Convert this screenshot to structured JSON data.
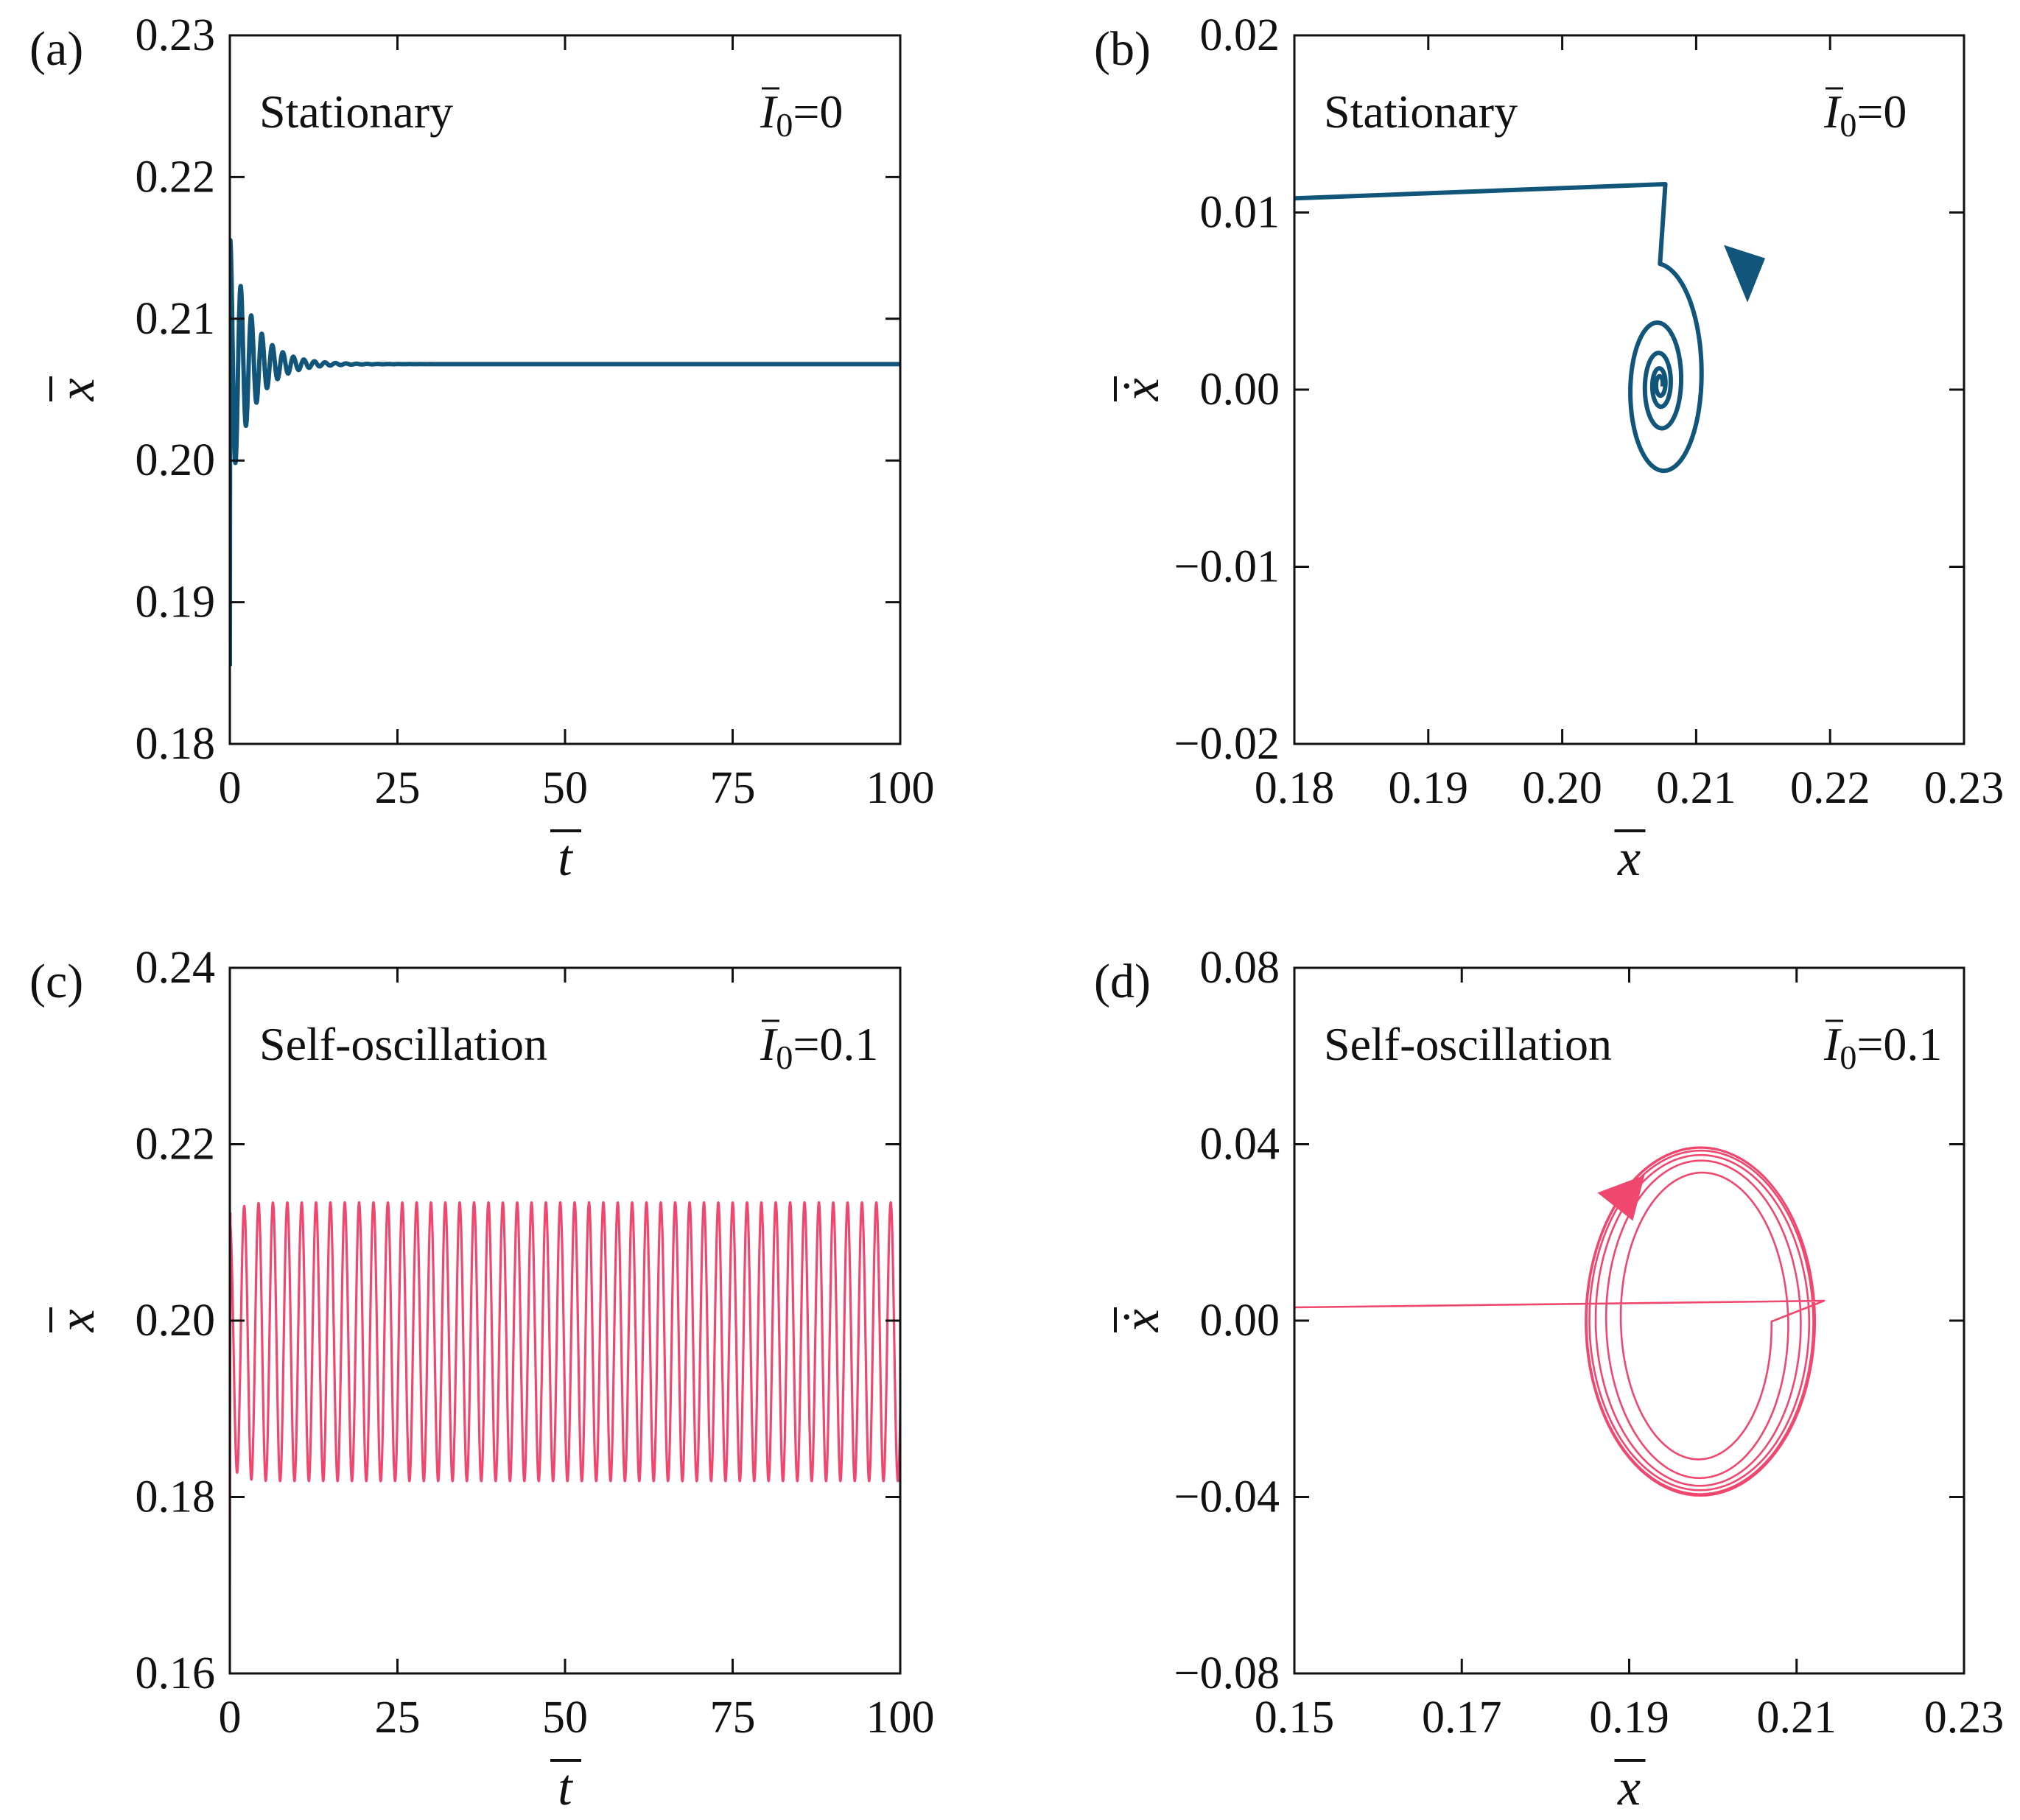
{
  "chart_data": [
    {
      "type": "line",
      "panel": "(a)",
      "regime": "Stationary",
      "param": {
        "symbol": "I",
        "subscript": "0",
        "value": "=0"
      },
      "xlabel": "t",
      "ylabel": "x",
      "xlim": [
        0,
        100
      ],
      "ylim": [
        0.18,
        0.23
      ],
      "xticks": [
        "0",
        "25",
        "50",
        "75",
        "100"
      ],
      "yticks": [
        "0.18",
        "0.19",
        "0.20",
        "0.21",
        "0.22",
        "0.23"
      ],
      "xtick_values": [
        0,
        25,
        50,
        75,
        100
      ],
      "ytick_values": [
        0.18,
        0.19,
        0.2,
        0.21,
        0.22,
        0.23
      ],
      "color": "#12557a",
      "model": {
        "kind": "damped",
        "x0": 0.1855,
        "eq": 0.2068,
        "amp": 0.0088,
        "decay": 0.3,
        "omega": 4.0,
        "rise": 0.06,
        "t_end": 100
      }
    },
    {
      "type": "line",
      "panel": "(b)",
      "regime": "Stationary",
      "param": {
        "symbol": "I",
        "subscript": "0",
        "value": "=0"
      },
      "xlabel": "x",
      "ylabel": "ẋ",
      "xlim": [
        0.18,
        0.23
      ],
      "ylim": [
        -0.02,
        0.02
      ],
      "xticks": [
        "0.18",
        "0.19",
        "0.20",
        "0.21",
        "0.22",
        "0.23"
      ],
      "yticks": [
        "−0.02",
        "−0.01",
        "0.00",
        "0.01",
        "0.02"
      ],
      "xtick_values": [
        0.18,
        0.19,
        0.2,
        0.21,
        0.22,
        0.23
      ],
      "ytick_values": [
        -0.02,
        -0.01,
        0.0,
        0.01,
        0.02
      ],
      "color": "#12557a",
      "model": {
        "kind": "spiral",
        "entry": [
          [
            0.18,
            0.0108
          ],
          [
            0.2077,
            0.0116
          ]
        ],
        "center": [
          0.2073,
          0.0003
        ],
        "r0": 0.0068,
        "aspect": 1.72,
        "turns": 4.3,
        "decay": 0.5
      },
      "arrow_at": [
        0.2135,
        0.0065
      ]
    },
    {
      "type": "line",
      "panel": "(c)",
      "regime": "Self-oscillation",
      "param": {
        "symbol": "I",
        "subscript": "0",
        "value": "=0.1"
      },
      "xlabel": "t",
      "ylabel": "x",
      "xlim": [
        0,
        100
      ],
      "ylim": [
        0.16,
        0.24
      ],
      "xticks": [
        "0",
        "25",
        "50",
        "75",
        "100"
      ],
      "yticks": [
        "0.16",
        "0.18",
        "0.20",
        "0.22",
        "0.24"
      ],
      "xtick_values": [
        0,
        25,
        50,
        75,
        100
      ],
      "ytick_values": [
        0.16,
        0.18,
        0.2,
        0.22,
        0.24
      ],
      "color": "#f0476f",
      "model": {
        "kind": "limit",
        "x0": 0.17,
        "center": 0.1976,
        "amp": 0.0158,
        "period": 2.143,
        "grow": 0.8,
        "t_end": 100
      }
    },
    {
      "type": "line",
      "panel": "(d)",
      "regime": "Self-oscillation",
      "param": {
        "symbol": "I",
        "subscript": "0",
        "value": "=0.1"
      },
      "xlabel": "x",
      "ylabel": "ẋ",
      "xlim": [
        0.15,
        0.23
      ],
      "ylim": [
        -0.08,
        0.08
      ],
      "xticks": [
        "0.15",
        "0.17",
        "0.19",
        "0.21",
        "0.23"
      ],
      "yticks": [
        "−0.08",
        "−0.04",
        "0.00",
        "0.04",
        "0.08"
      ],
      "xtick_values": [
        0.15,
        0.17,
        0.19,
        0.21,
        0.23
      ],
      "ytick_values": [
        -0.08,
        -0.04,
        0.0,
        0.04,
        0.08
      ],
      "color": "#f0476f",
      "model": {
        "kind": "cycle",
        "entry": [
          [
            0.15,
            0.003
          ],
          [
            0.2133,
            0.0045
          ]
        ],
        "center": [
          0.1985,
          -0.0002
        ],
        "rx": [
          0.0085,
          0.0105,
          0.012,
          0.013,
          0.0135,
          0.0137
        ],
        "ry": [
          0.03,
          0.035,
          0.037,
          0.038,
          0.039,
          0.0395
        ]
      },
      "arrow_at": [
        0.1892,
        0.028
      ]
    }
  ]
}
